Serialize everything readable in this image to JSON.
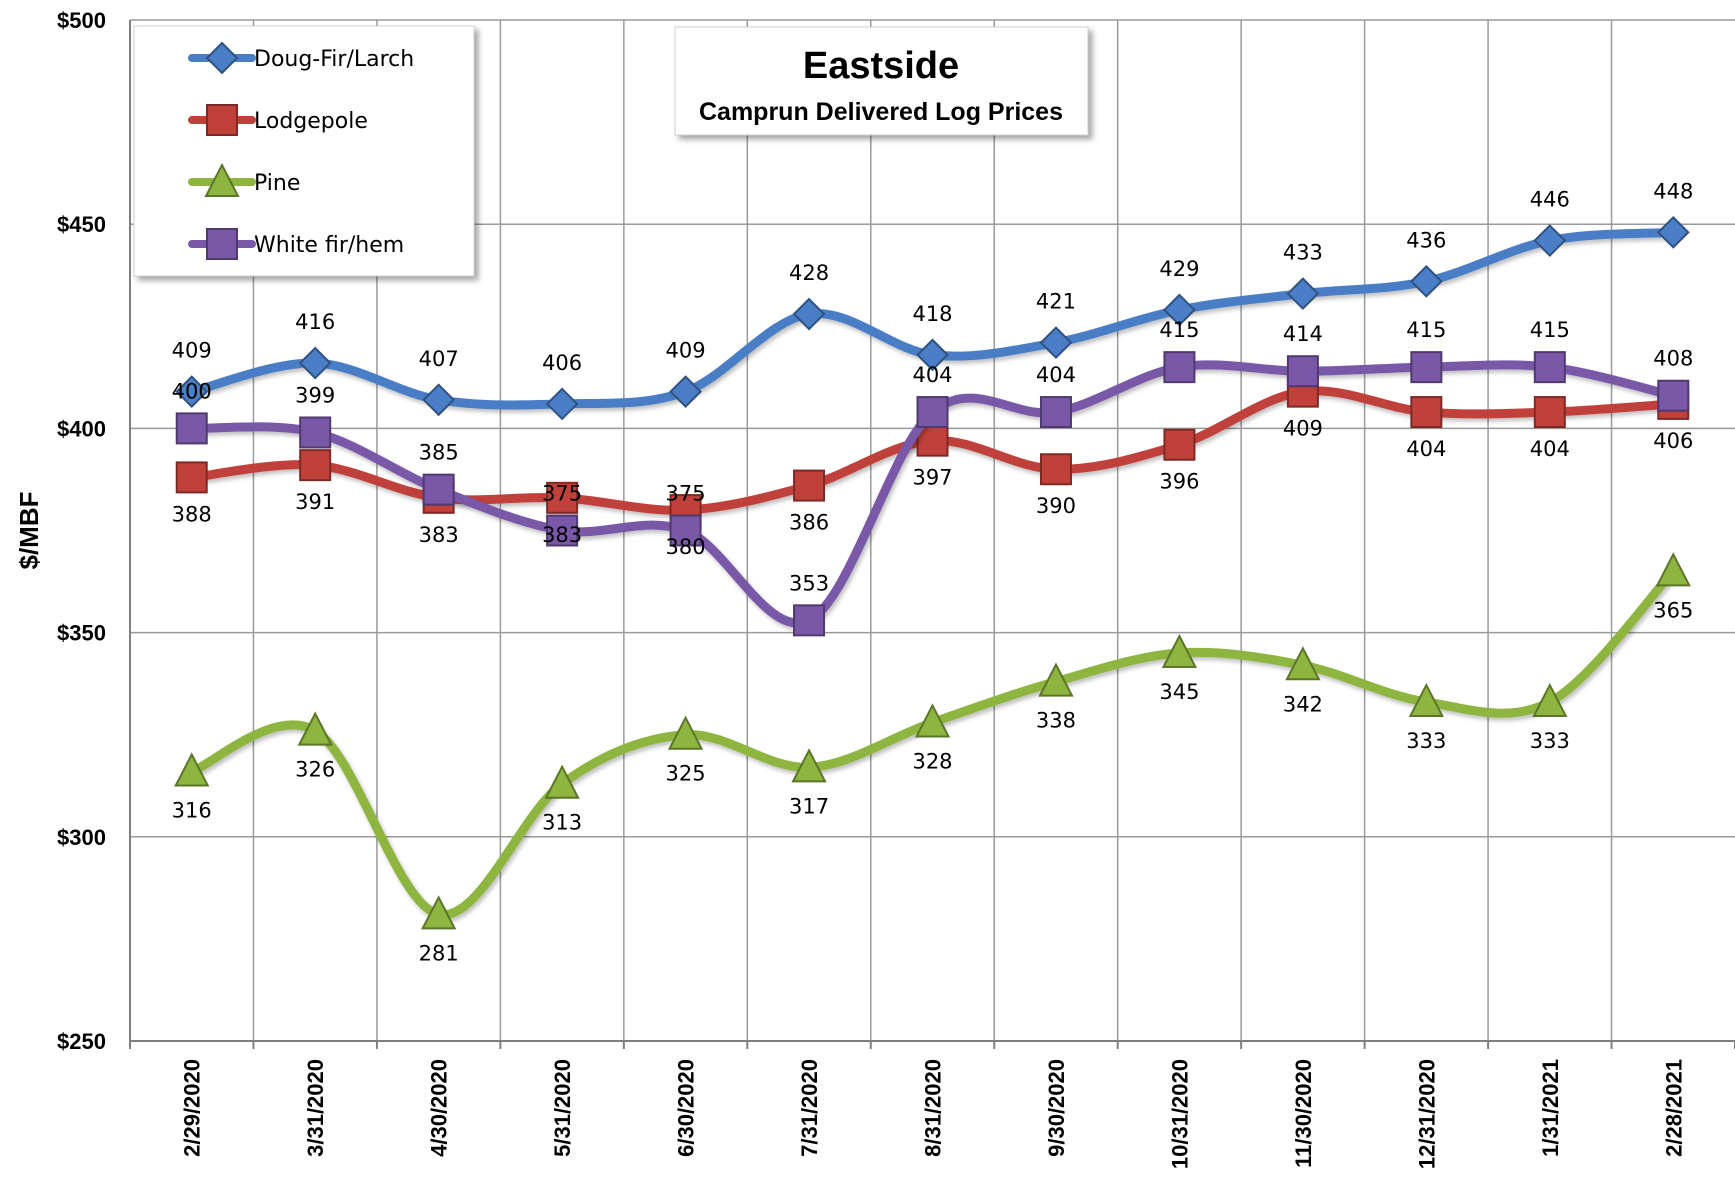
{
  "chart_data": {
    "type": "line",
    "title": "Eastside",
    "subtitle": "Camprun Delivered Log Prices",
    "ylabel": "$/MBF",
    "xlabel": "",
    "ylim": [
      250,
      500
    ],
    "ytick_values": [
      250,
      300,
      350,
      400,
      450,
      500
    ],
    "ytick_labels": [
      "$250",
      "$300",
      "$350",
      "$400",
      "$450",
      "$500"
    ],
    "grid": true,
    "legend_position": "top-left",
    "categories": [
      "2/29/2020",
      "3/31/2020",
      "4/30/2020",
      "5/31/2020",
      "6/30/2020",
      "7/31/2020",
      "8/31/2020",
      "9/30/2020",
      "10/31/2020",
      "11/30/2020",
      "12/31/2020",
      "1/31/2021",
      "2/28/2021"
    ],
    "series": [
      {
        "name": "Doug-Fir/Larch",
        "color": "#4a7ec6",
        "marker": "diamond",
        "values": [
          409,
          416,
          407,
          406,
          409,
          428,
          418,
          421,
          429,
          433,
          436,
          446,
          448
        ]
      },
      {
        "name": "Lodgepole",
        "color": "#c0403a",
        "marker": "square",
        "values": [
          388,
          391,
          383,
          383,
          380,
          386,
          397,
          390,
          396,
          409,
          404,
          404,
          406
        ]
      },
      {
        "name": "Pine",
        "color": "#8db53f",
        "marker": "triangle",
        "values": [
          316,
          326,
          281,
          313,
          325,
          317,
          328,
          338,
          345,
          342,
          333,
          333,
          365
        ]
      },
      {
        "name": "White fir/hem",
        "color": "#7a58a8",
        "marker": "square",
        "values": [
          400,
          399,
          385,
          375,
          375,
          353,
          404,
          404,
          415,
          414,
          415,
          415,
          408
        ]
      }
    ]
  }
}
